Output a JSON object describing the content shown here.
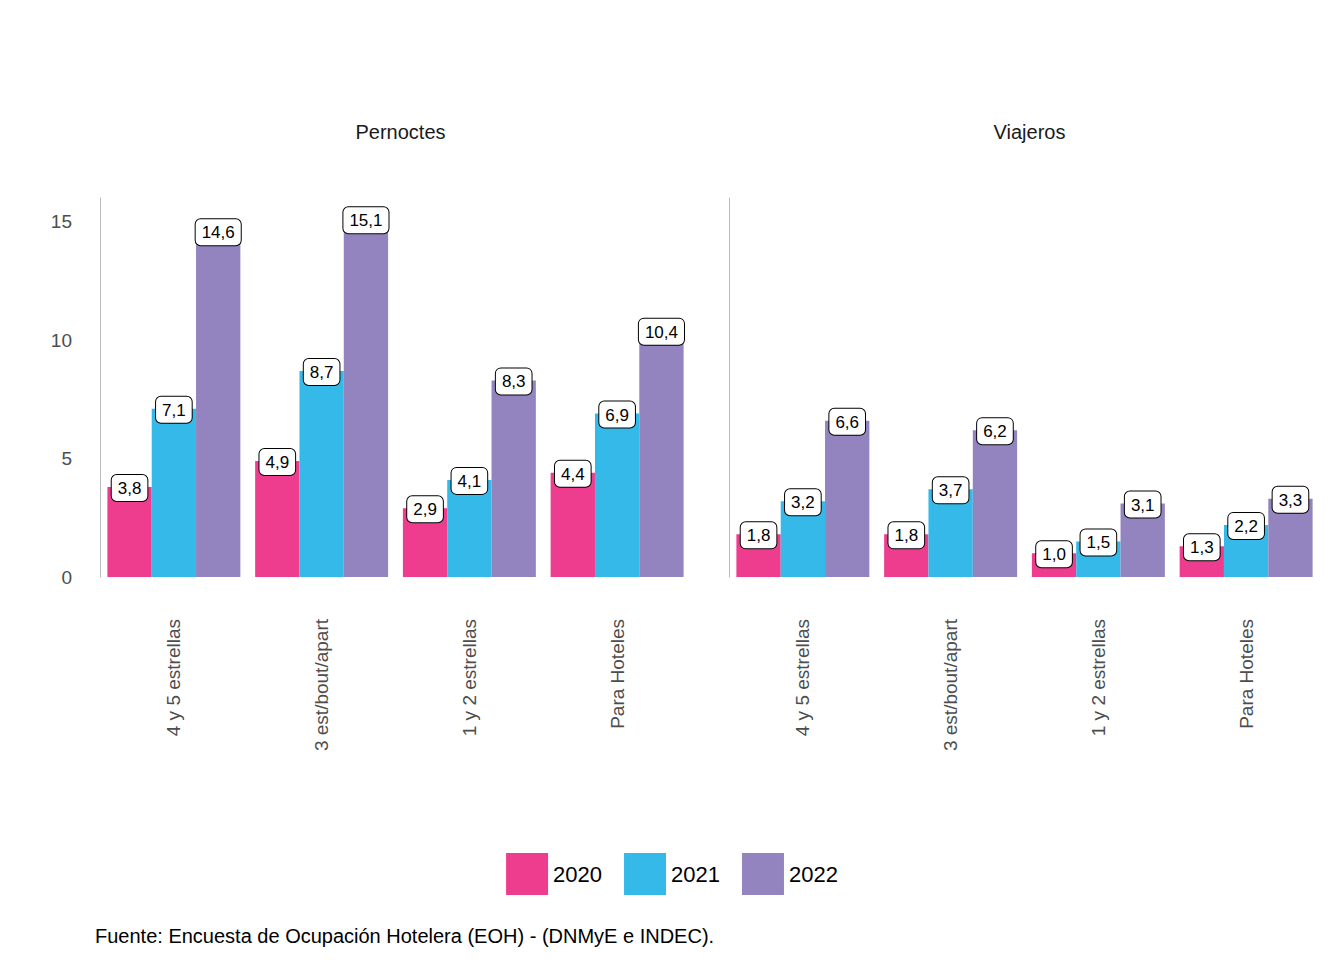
{
  "chart_data": [
    {
      "type": "bar",
      "title": "Pernoctes",
      "categories": [
        "4 y 5 estrellas",
        "3 est/bout/apart",
        "1 y 2 estrellas",
        "Para Hoteles"
      ],
      "series": [
        {
          "name": "2020",
          "color": "#ee3d8f",
          "values": [
            3.8,
            4.9,
            2.9,
            4.4
          ],
          "value_labels": [
            "3,8",
            "4,9",
            "2,9",
            "4,4"
          ]
        },
        {
          "name": "2021",
          "color": "#35b9e9",
          "values": [
            7.1,
            8.7,
            4.1,
            6.9
          ],
          "value_labels": [
            "7,1",
            "8,7",
            "4,1",
            "6,9"
          ]
        },
        {
          "name": "2022",
          "color": "#9384bf",
          "values": [
            14.6,
            15.1,
            8.3,
            10.4
          ],
          "value_labels": [
            "14,6",
            "15,1",
            "8,3",
            "10,4"
          ]
        }
      ],
      "ylim": [
        0,
        16
      ],
      "yticks": [
        0,
        5,
        10,
        15
      ],
      "grid": false,
      "data_labels": true,
      "legend": "bottom",
      "caption": "Fuente: Encuesta de Ocupación Hotelera (EOH) - (DNMyE e INDEC)."
    },
    {
      "type": "bar",
      "title": "Viajeros",
      "categories": [
        "4 y 5 estrellas",
        "3 est/bout/apart",
        "1 y 2 estrellas",
        "Para Hoteles"
      ],
      "series": [
        {
          "name": "2020",
          "color": "#ee3d8f",
          "values": [
            1.8,
            1.8,
            1.0,
            1.3
          ],
          "value_labels": [
            "1,8",
            "1,8",
            "1,0",
            "1,3"
          ]
        },
        {
          "name": "2021",
          "color": "#35b9e9",
          "values": [
            3.2,
            3.7,
            1.5,
            2.2
          ],
          "value_labels": [
            "3,2",
            "3,7",
            "1,5",
            "2,2"
          ]
        },
        {
          "name": "2022",
          "color": "#9384bf",
          "values": [
            6.6,
            6.2,
            3.1,
            3.3
          ],
          "value_labels": [
            "6,6",
            "6,2",
            "3,1",
            "3,3"
          ]
        }
      ],
      "ylim": [
        0,
        16
      ],
      "yticks": [
        0,
        5,
        10,
        15
      ],
      "grid": false,
      "data_labels": true,
      "tick_labels": "x"
    }
  ]
}
